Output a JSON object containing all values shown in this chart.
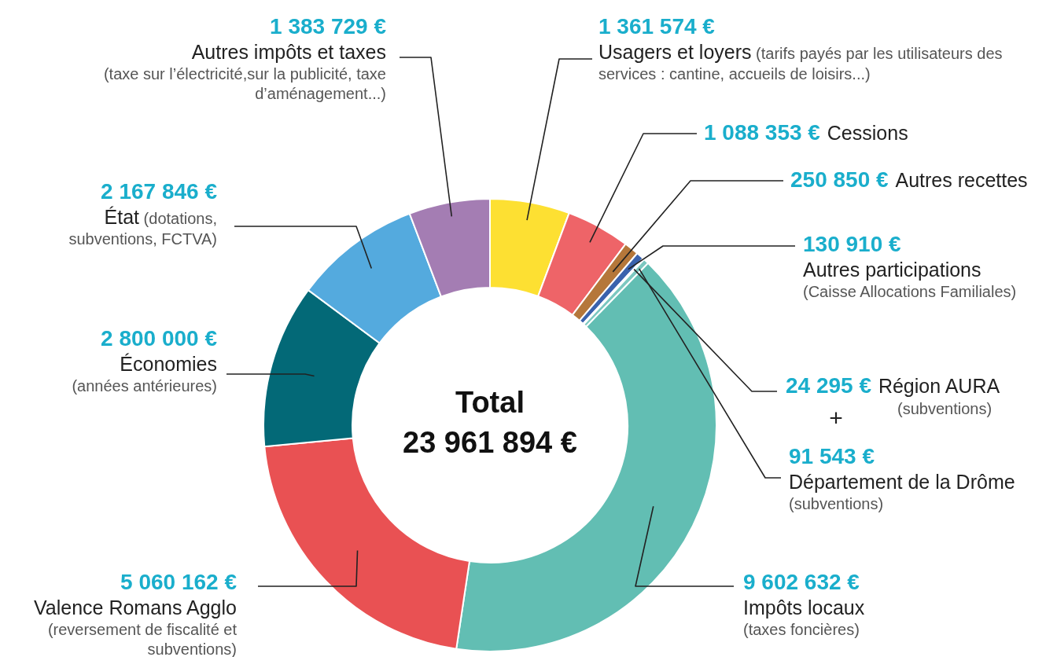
{
  "chart_data": {
    "type": "donut",
    "title": "Total",
    "subtitle": "23 961 894 €",
    "categories": [
      "Usagers et loyers (tarifs payés par les utilisateurs des services : cantine, accueils de loisirs...)",
      "Cessions",
      "Autres recettes",
      "Autres participations (Caisse Allocations Familiales)",
      "Région AURA (subventions)",
      "Département de la Drôme (subventions)",
      "Impôts locaux (taxes foncières)",
      "Valence Romans Agglo (reversement de fiscalité et subventions)",
      "Économies (années antérieures)",
      "État (dotations, subventions, FCTVA)",
      "Autres impôts et taxes (taxe sur l’électricité,sur la publicité, taxe d’aménagement...)"
    ],
    "values": [
      1361574,
      1088353,
      250850,
      130910,
      24295,
      91543,
      9602632,
      5060162,
      2800000,
      2167846,
      1383729
    ],
    "value_labels": [
      "1 361 574 €",
      "1 088 353 €",
      "250 850 €",
      "130 910 €",
      "24 295 €",
      "91 543 €",
      "9 602 632 €",
      "5 060 162 €",
      "2 800 000 €",
      "2 167 846 €",
      "1 383 729 €"
    ],
    "colors": [
      "#fde032",
      "#ee6468",
      "#b5773a",
      "#3a62ad",
      "#9fd6e6",
      "#7cc8c0",
      "#62beb3",
      "#e95153",
      "#036977",
      "#54aade",
      "#a47db3"
    ],
    "annotations": [
      "+"
    ]
  }
}
